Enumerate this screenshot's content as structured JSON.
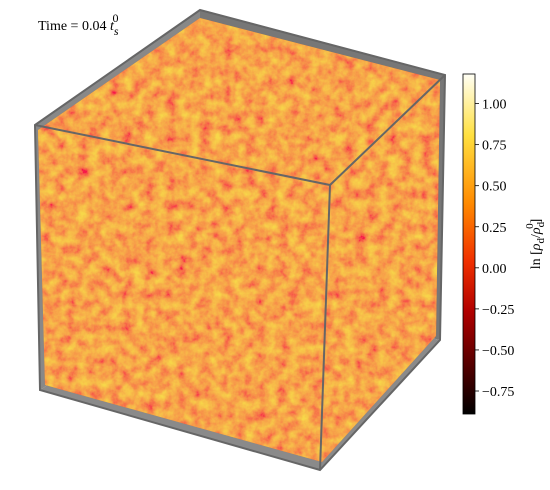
{
  "chart_data": {
    "type": "volume-render",
    "title": {
      "prefix": "Time = 0.04 ",
      "var": "t",
      "sub": "s",
      "sup": "0"
    },
    "colorbar": {
      "label": [
        "ln [",
        "ρ",
        "d",
        "/",
        "ρ",
        "d",
        "0",
        "]"
      ],
      "lim": [
        -0.89,
        1.18
      ],
      "ticks": [
        {
          "value": -0.75,
          "label": "−0.75"
        },
        {
          "value": -0.5,
          "label": "−0.50"
        },
        {
          "value": -0.25,
          "label": "−0.25"
        },
        {
          "value": 0,
          "label": "0.00"
        },
        {
          "value": 0.25,
          "label": "0.25"
        },
        {
          "value": 0.5,
          "label": "0.50"
        },
        {
          "value": 0.75,
          "label": "0.75"
        },
        {
          "value": 1,
          "label": "1.00"
        }
      ]
    }
  }
}
